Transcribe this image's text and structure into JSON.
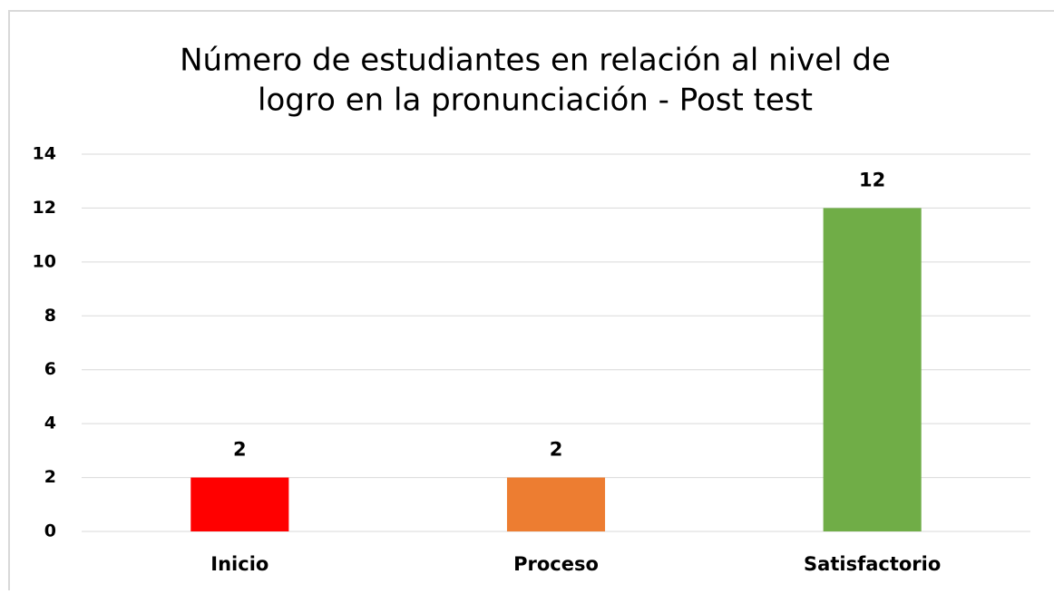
{
  "chart_data": {
    "type": "bar",
    "title": [
      "Número de estudiantes en relación al nivel de",
      "logro en la pronunciación - Post test"
    ],
    "categories": [
      "Inicio",
      "Proceso",
      "Satisfactorio"
    ],
    "values": [
      2,
      2,
      12
    ],
    "colors": [
      "#ff0000",
      "#ed7d31",
      "#70ad47"
    ],
    "ylim": [
      0,
      14
    ],
    "yticks": [
      0,
      2,
      4,
      6,
      8,
      10,
      12,
      14
    ],
    "grid": true
  }
}
